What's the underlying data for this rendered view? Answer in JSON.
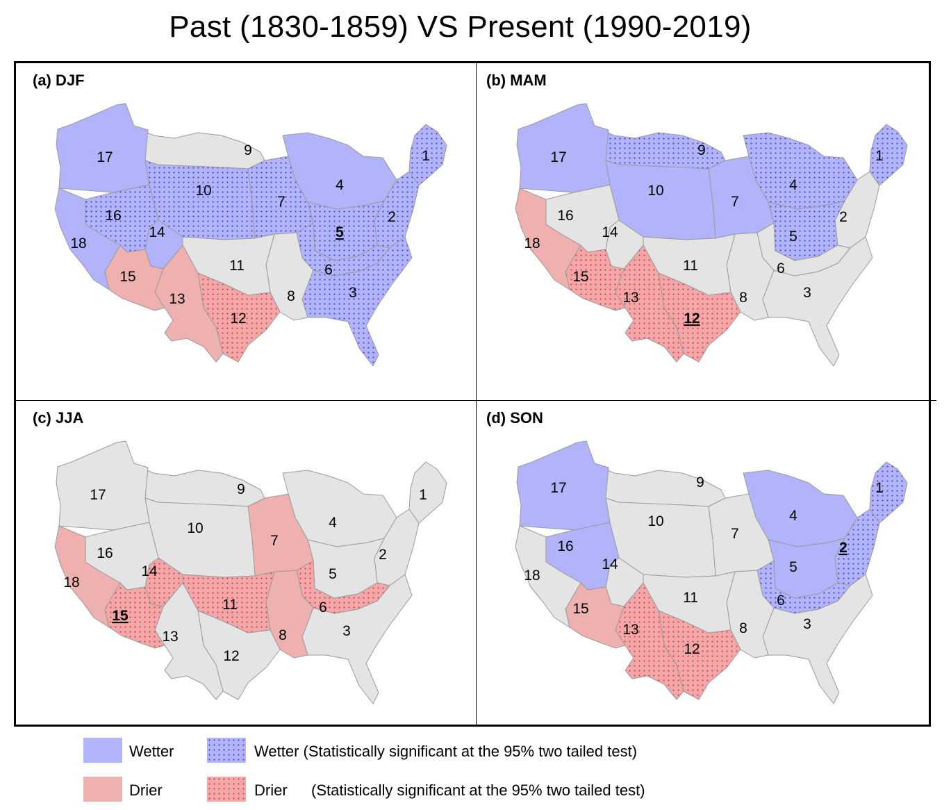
{
  "title": "Past (1830-1859) VS Present (1990-2019)",
  "colors": {
    "wetter": "#b1b3fb",
    "wetter_sig_bg": "#b1b3fb",
    "wetter_sig_dot": "#2a2ee8",
    "drier": "#efb0b0",
    "drier_sig_bg": "#f2a8a8",
    "drier_sig_dot": "#e8202a",
    "neutral": "#e4e4e4",
    "border": "#9a9a9a"
  },
  "legend": {
    "wetter": "Wetter",
    "wetter_sig": "Wetter (Statistically significant at the 95% two tailed test)",
    "drier": "Drier",
    "drier_sig_a": "Drier",
    "drier_sig_b": "(Statistically significant at the 95% two tailed test)"
  },
  "panels": [
    {
      "label": "(a) DJF",
      "regions": {
        "1": {
          "status": "wetter_sig",
          "sig_underline": false
        },
        "2": {
          "status": "wetter_sig",
          "sig_underline": false
        },
        "3": {
          "status": "wetter_sig",
          "sig_underline": false
        },
        "4": {
          "status": "wetter",
          "sig_underline": false
        },
        "5": {
          "status": "wetter_sig",
          "sig_underline": true
        },
        "6": {
          "status": "wetter_sig",
          "sig_underline": false
        },
        "7": {
          "status": "wetter_sig",
          "sig_underline": false
        },
        "8": {
          "status": "neutral",
          "sig_underline": false
        },
        "9": {
          "status": "neutral",
          "sig_underline": false
        },
        "10": {
          "status": "wetter_sig",
          "sig_underline": false
        },
        "11": {
          "status": "neutral",
          "sig_underline": false
        },
        "12": {
          "status": "drier_sig",
          "sig_underline": false
        },
        "13": {
          "status": "drier",
          "sig_underline": false
        },
        "14": {
          "status": "wetter",
          "sig_underline": false
        },
        "15": {
          "status": "drier",
          "sig_underline": false
        },
        "16": {
          "status": "wetter_sig",
          "sig_underline": false
        },
        "17": {
          "status": "wetter",
          "sig_underline": false
        },
        "18": {
          "status": "wetter",
          "sig_underline": false
        }
      }
    },
    {
      "label": "(b) MAM",
      "regions": {
        "1": {
          "status": "wetter_sig",
          "sig_underline": false
        },
        "2": {
          "status": "neutral",
          "sig_underline": false
        },
        "3": {
          "status": "neutral",
          "sig_underline": false
        },
        "4": {
          "status": "wetter_sig",
          "sig_underline": false
        },
        "5": {
          "status": "wetter_sig",
          "sig_underline": false
        },
        "6": {
          "status": "neutral",
          "sig_underline": false
        },
        "7": {
          "status": "wetter",
          "sig_underline": false
        },
        "8": {
          "status": "neutral",
          "sig_underline": false
        },
        "9": {
          "status": "wetter_sig",
          "sig_underline": false
        },
        "10": {
          "status": "wetter",
          "sig_underline": false
        },
        "11": {
          "status": "neutral",
          "sig_underline": false
        },
        "12": {
          "status": "drier_sig",
          "sig_underline": true
        },
        "13": {
          "status": "drier_sig",
          "sig_underline": false
        },
        "14": {
          "status": "neutral",
          "sig_underline": false
        },
        "15": {
          "status": "drier_sig",
          "sig_underline": false
        },
        "16": {
          "status": "neutral",
          "sig_underline": false
        },
        "17": {
          "status": "wetter",
          "sig_underline": false
        },
        "18": {
          "status": "drier",
          "sig_underline": false
        }
      }
    },
    {
      "label": "(c) JJA",
      "regions": {
        "1": {
          "status": "neutral",
          "sig_underline": false
        },
        "2": {
          "status": "neutral",
          "sig_underline": false
        },
        "3": {
          "status": "neutral",
          "sig_underline": false
        },
        "4": {
          "status": "neutral",
          "sig_underline": false
        },
        "5": {
          "status": "neutral",
          "sig_underline": false
        },
        "6": {
          "status": "drier_sig",
          "sig_underline": false
        },
        "7": {
          "status": "drier",
          "sig_underline": false
        },
        "8": {
          "status": "drier",
          "sig_underline": false
        },
        "9": {
          "status": "neutral",
          "sig_underline": false
        },
        "10": {
          "status": "neutral",
          "sig_underline": false
        },
        "11": {
          "status": "drier_sig",
          "sig_underline": false
        },
        "12": {
          "status": "neutral",
          "sig_underline": false
        },
        "13": {
          "status": "neutral",
          "sig_underline": false
        },
        "14": {
          "status": "drier_sig",
          "sig_underline": false
        },
        "15": {
          "status": "drier_sig",
          "sig_underline": true
        },
        "16": {
          "status": "neutral",
          "sig_underline": false
        },
        "17": {
          "status": "neutral",
          "sig_underline": false
        },
        "18": {
          "status": "drier",
          "sig_underline": false
        }
      }
    },
    {
      "label": "(d) SON",
      "regions": {
        "1": {
          "status": "wetter_sig",
          "sig_underline": false
        },
        "2": {
          "status": "wetter_sig",
          "sig_underline": true
        },
        "3": {
          "status": "neutral",
          "sig_underline": false
        },
        "4": {
          "status": "wetter",
          "sig_underline": false
        },
        "5": {
          "status": "wetter",
          "sig_underline": false
        },
        "6": {
          "status": "wetter_sig",
          "sig_underline": false
        },
        "7": {
          "status": "neutral",
          "sig_underline": false
        },
        "8": {
          "status": "neutral",
          "sig_underline": false
        },
        "9": {
          "status": "neutral",
          "sig_underline": false
        },
        "10": {
          "status": "neutral",
          "sig_underline": false
        },
        "11": {
          "status": "neutral",
          "sig_underline": false
        },
        "12": {
          "status": "drier_sig",
          "sig_underline": false
        },
        "13": {
          "status": "drier_sig",
          "sig_underline": false
        },
        "14": {
          "status": "neutral",
          "sig_underline": false
        },
        "15": {
          "status": "drier",
          "sig_underline": false
        },
        "16": {
          "status": "wetter",
          "sig_underline": false
        },
        "17": {
          "status": "wetter",
          "sig_underline": false
        },
        "18": {
          "status": "neutral",
          "sig_underline": false
        }
      }
    }
  ]
}
